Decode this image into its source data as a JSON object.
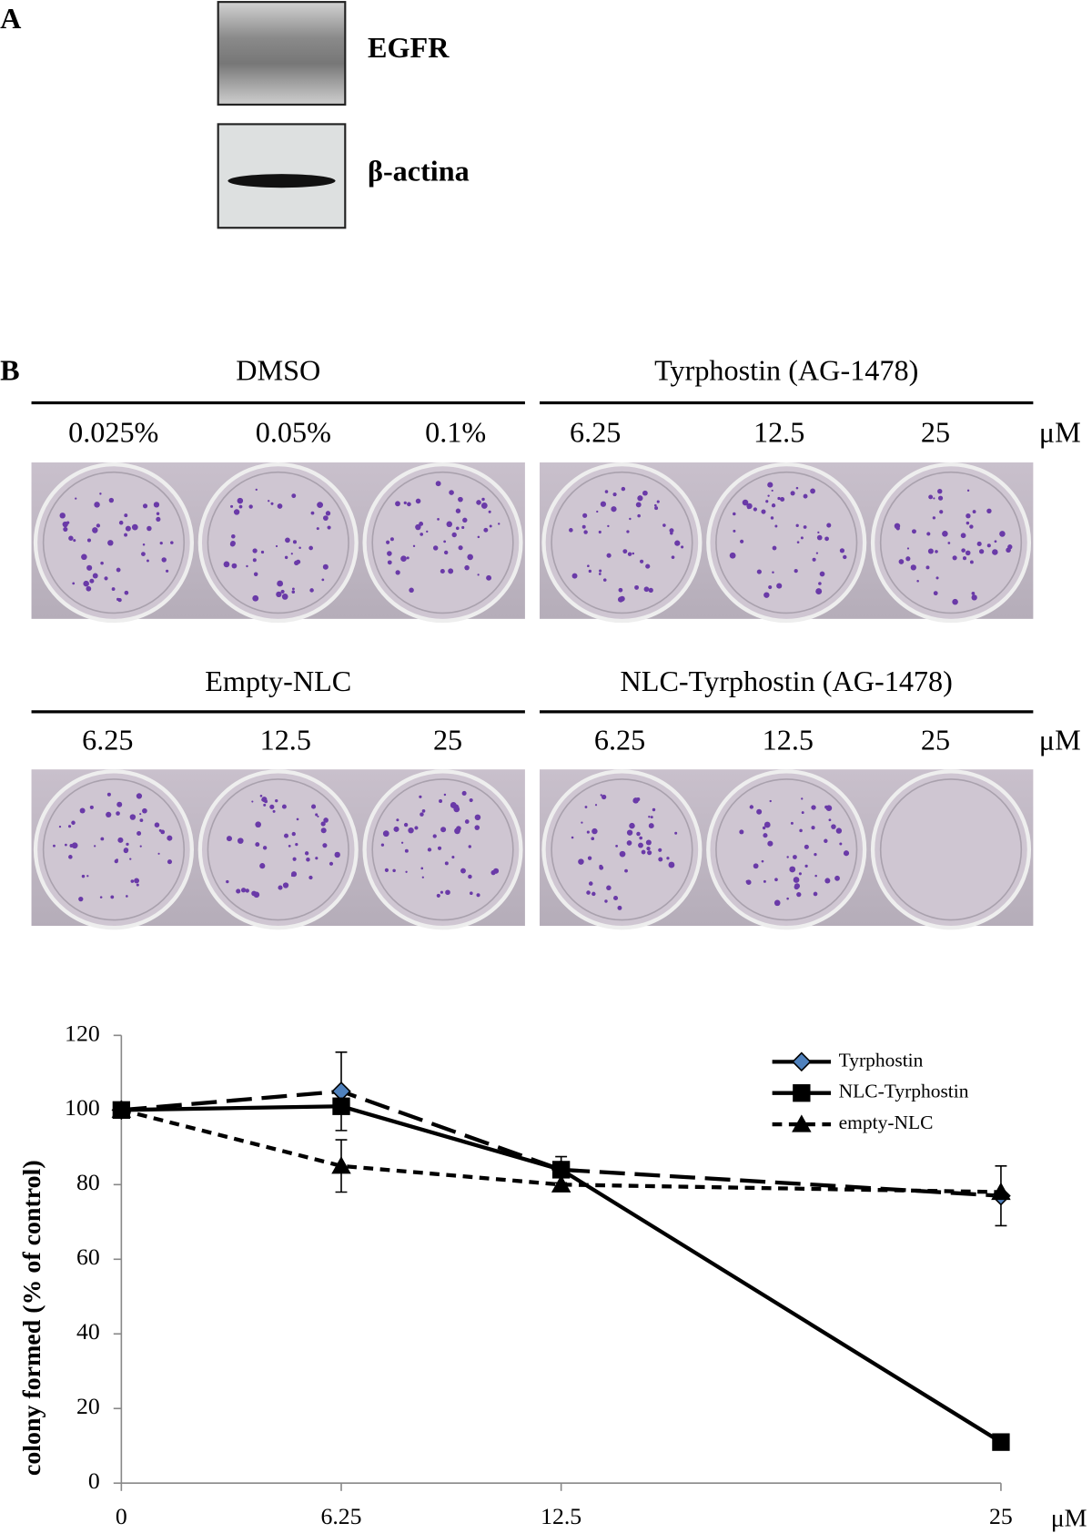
{
  "panel_a": {
    "label": "A",
    "blots": [
      {
        "label": "EGFR"
      },
      {
        "label": "β-actina"
      }
    ]
  },
  "panel_b": {
    "label": "B",
    "rows": [
      {
        "groups": [
          {
            "title": "DMSO",
            "doses": [
              "0.025%",
              "0.05%",
              "0.1%"
            ]
          },
          {
            "title": "Tyrphostin (AG-1478)",
            "doses": [
              "6.25",
              "12.5",
              "25"
            ]
          }
        ],
        "unit": "μM"
      },
      {
        "groups": [
          {
            "title": "Empty-NLC",
            "doses": [
              "6.25",
              "12.5",
              "25"
            ]
          },
          {
            "title": "NLC-Tyrphostin (AG-1478)",
            "doses": [
              "6.25",
              "12.5",
              "25"
            ]
          }
        ],
        "unit": "μM"
      }
    ]
  },
  "chart_data": {
    "type": "line",
    "ylabel": "colony formed (% of control)",
    "xlabel": "μM",
    "x": [
      0,
      6.25,
      12.5,
      25
    ],
    "xlim": [
      0,
      25
    ],
    "xticks": [
      0,
      6.25,
      12.5,
      25
    ],
    "ylim": [
      0,
      120
    ],
    "yticks": [
      0,
      20,
      40,
      60,
      80,
      100,
      120
    ],
    "legend": "upper right",
    "series": [
      {
        "name": "Tyrphostin",
        "color": "#000000",
        "marker": "diamond",
        "marker_color": "#4f81bd",
        "dash": "long",
        "values": [
          100,
          105,
          84,
          77
        ],
        "errors": [
          null,
          10.5,
          null,
          8
        ]
      },
      {
        "name": "NLC-Tyrphostin",
        "color": "#000000",
        "marker": "square",
        "marker_color": "#000000",
        "dash": "solid",
        "values": [
          100,
          101,
          84,
          11
        ],
        "errors": [
          null,
          null,
          3.5,
          1.5
        ]
      },
      {
        "name": "empty-NLC",
        "color": "#000000",
        "marker": "triangle",
        "marker_color": "#000000",
        "dash": "short",
        "values": [
          100,
          85,
          80,
          78
        ],
        "errors": [
          null,
          7,
          null,
          null
        ]
      }
    ]
  }
}
